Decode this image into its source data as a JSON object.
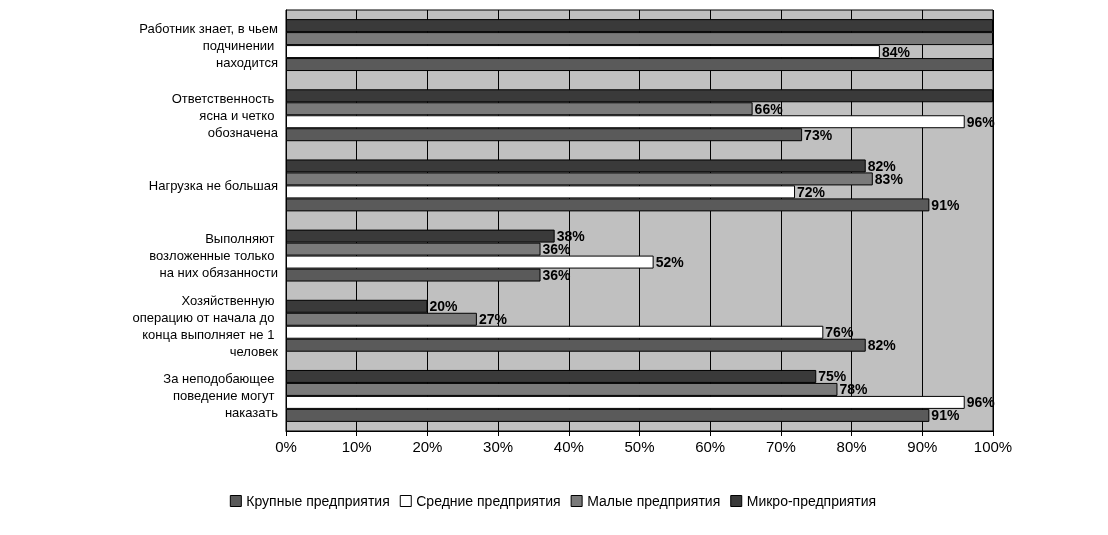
{
  "chart_data": {
    "type": "bar",
    "orientation": "horizontal",
    "categories": [
      "Работник знает, в чьем подчинении находится",
      "Ответственность ясна и четко обозначена",
      "Нагрузка не большая",
      "Выполняют возложенные только на них обязанности",
      "Хозяйственную операцию от начала до конца выполняет не 1 человек",
      "За неподобающее поведение могут наказать"
    ],
    "series": [
      {
        "name": "Микро-предприятия",
        "color": "#3a3a3a",
        "values": [
          100,
          100,
          82,
          38,
          20,
          75
        ],
        "value_labels": [
          null,
          null,
          "82%",
          "38%",
          "20%",
          "75%"
        ]
      },
      {
        "name": "Малые предприятия",
        "color": "#7a7a7a",
        "values": [
          100,
          66,
          83,
          36,
          27,
          78
        ],
        "value_labels": [
          null,
          "66%",
          "83%",
          "36%",
          "27%",
          "78%"
        ]
      },
      {
        "name": "Средние предприятия",
        "color": "#ffffff",
        "values": [
          84,
          96,
          72,
          52,
          76,
          96
        ],
        "value_labels": [
          "84%",
          "96%",
          "72%",
          "52%",
          "76%",
          "96%"
        ]
      },
      {
        "name": "Крупные предприятия",
        "color": "#5a5a5a",
        "values": [
          100,
          73,
          91,
          36,
          82,
          91
        ],
        "value_labels": [
          null,
          "73%",
          "91%",
          "36%",
          "82%",
          "91%"
        ]
      }
    ],
    "xlim": [
      0,
      100
    ],
    "xticks": [
      {
        "value": 0,
        "label": "0%"
      },
      {
        "value": 10,
        "label": "10%"
      },
      {
        "value": 20,
        "label": "20%"
      },
      {
        "value": 30,
        "label": "30%"
      },
      {
        "value": 40,
        "label": "40%"
      },
      {
        "value": 50,
        "label": "50%"
      },
      {
        "value": 60,
        "label": "60%"
      },
      {
        "value": 70,
        "label": "70%"
      },
      {
        "value": 80,
        "label": "80%"
      },
      {
        "value": 90,
        "label": "90%"
      },
      {
        "value": 100,
        "label": "100%"
      }
    ],
    "grid": "x",
    "legend": "bottom"
  }
}
